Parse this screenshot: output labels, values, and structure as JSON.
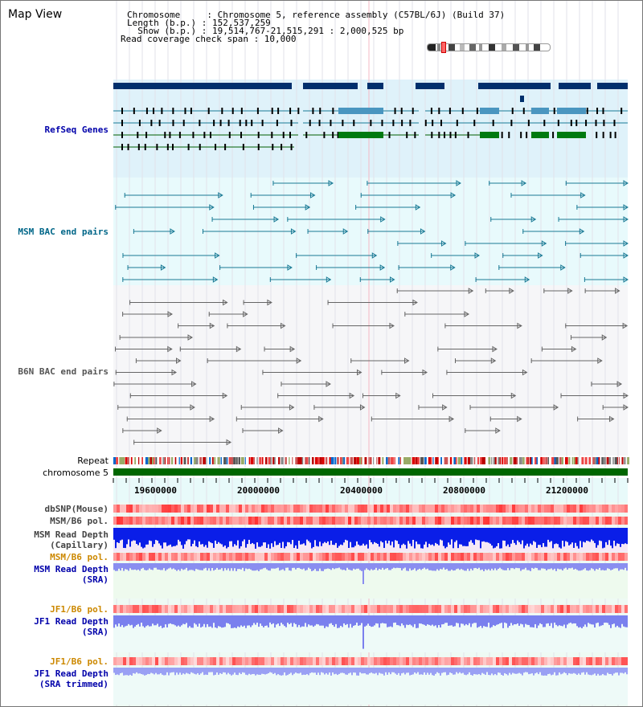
{
  "title": "Map View",
  "header": {
    "line1": "Chromosome     : Chromosome 5, reference assembly (C57BL/6J) (Build 37)",
    "line2": "Length (b.p.) : 152,537,259",
    "line3": "  Show (b.p.) : 19,514,767-21,515,291 : 2,000,525 bp",
    "line4": "Read coverage check span : 10,000"
  },
  "tracks": {
    "refseq": "RefSeq Genes",
    "msm_bac": "MSM BAC end pairs",
    "b6n_bac": "B6N BAC end pairs",
    "repeat": "Repeat",
    "chrom": "chromosome 5",
    "dbsnp": "dbSNP(Mouse)",
    "msm_b6_pol": "MSM/B6 pol.",
    "msm_read_cap_1": "MSM Read Depth",
    "msm_read_cap_2": "(Capillary)",
    "msm_b6_pol_2": "MSM/B6 pol.",
    "msm_read_sra_1": "MSM Read Depth",
    "msm_read_sra_2": "(SRA)",
    "jf1_pol_1": "JF1/B6 pol.",
    "jf1_read_1": "JF1 Read Depth",
    "jf1_read_2": "(SRA)",
    "jf1_pol_2": "JF1/B6 pol.",
    "jf1_trim_1": "JF1 Read Depth",
    "jf1_trim_2": "(SRA trimmed)"
  },
  "axis": {
    "ticks": [
      "19600000",
      "20000000",
      "20400000",
      "20800000",
      "21200000"
    ]
  },
  "colors": {
    "refseq_bg": "#dff2fa",
    "msm_bg": "#e8fafc",
    "b6n_bg": "#f8f8fa",
    "lower_bg": "#e8fafa",
    "refseq_label": "#0000aa",
    "msm_label": "#006688",
    "b6n_label": "#555555",
    "orange_label": "#cc8800",
    "blue_label": "#0000aa",
    "chromosome": "#006600"
  }
}
